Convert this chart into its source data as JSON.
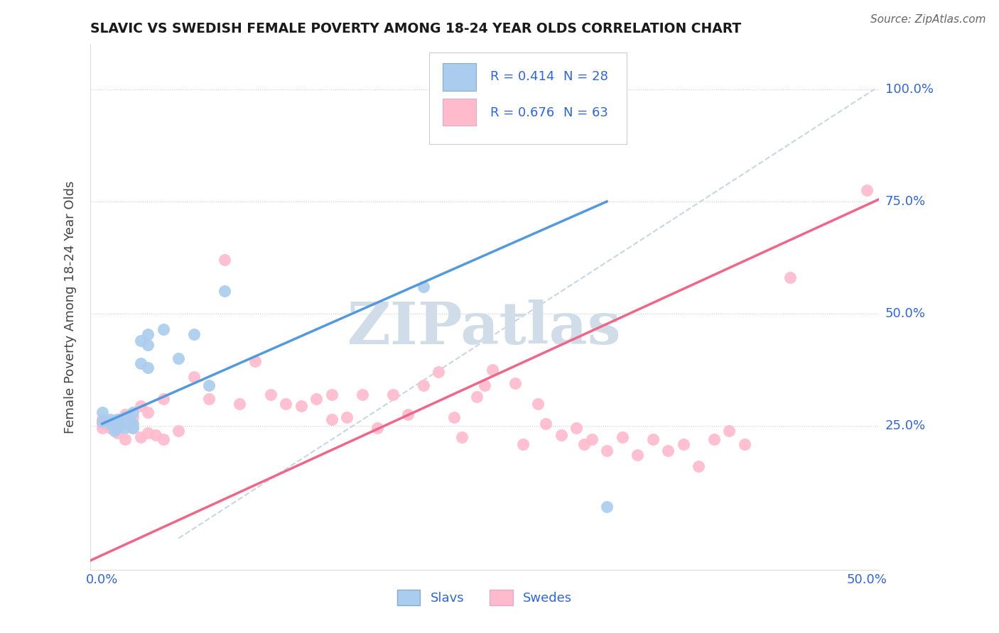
{
  "title": "SLAVIC VS SWEDISH FEMALE POVERTY AMONG 18-24 YEAR OLDS CORRELATION CHART",
  "source": "Source: ZipAtlas.com",
  "ylabel": "Female Poverty Among 18-24 Year Olds",
  "xlim": [
    -0.008,
    0.508
  ],
  "ylim": [
    -0.07,
    1.1
  ],
  "slavs_color": "#AACCEE",
  "swedes_color": "#FFBBCC",
  "slavs_line_color": "#5599DD",
  "swedes_line_color": "#EE6688",
  "diag_color": "#BBCCDD",
  "watermark": "ZIPatlas",
  "watermark_color": "#D0DDE8",
  "legend_R1": "R = 0.414",
  "legend_N1": "N = 28",
  "legend_R2": "R = 0.676",
  "legend_N2": "N = 63",
  "slavs_x": [
    0.0,
    0.0,
    0.005,
    0.005,
    0.008,
    0.01,
    0.01,
    0.01,
    0.012,
    0.015,
    0.015,
    0.015,
    0.018,
    0.02,
    0.02,
    0.02,
    0.025,
    0.025,
    0.03,
    0.03,
    0.03,
    0.04,
    0.05,
    0.06,
    0.07,
    0.08,
    0.21,
    0.33
  ],
  "slavs_y": [
    0.26,
    0.28,
    0.255,
    0.265,
    0.24,
    0.245,
    0.255,
    0.265,
    0.255,
    0.245,
    0.255,
    0.27,
    0.26,
    0.245,
    0.255,
    0.28,
    0.39,
    0.44,
    0.38,
    0.43,
    0.455,
    0.465,
    0.4,
    0.455,
    0.34,
    0.55,
    0.56,
    0.07
  ],
  "swedes_x": [
    0.0,
    0.0,
    0.0,
    0.005,
    0.005,
    0.01,
    0.01,
    0.01,
    0.015,
    0.015,
    0.02,
    0.02,
    0.025,
    0.025,
    0.03,
    0.03,
    0.035,
    0.04,
    0.04,
    0.05,
    0.06,
    0.07,
    0.08,
    0.09,
    0.1,
    0.11,
    0.12,
    0.13,
    0.14,
    0.15,
    0.15,
    0.16,
    0.17,
    0.18,
    0.19,
    0.2,
    0.21,
    0.22,
    0.23,
    0.235,
    0.245,
    0.25,
    0.255,
    0.27,
    0.275,
    0.285,
    0.29,
    0.3,
    0.31,
    0.315,
    0.32,
    0.33,
    0.34,
    0.35,
    0.36,
    0.37,
    0.38,
    0.39,
    0.4,
    0.41,
    0.42,
    0.45,
    0.5
  ],
  "swedes_y": [
    0.245,
    0.255,
    0.265,
    0.245,
    0.26,
    0.235,
    0.255,
    0.265,
    0.22,
    0.275,
    0.245,
    0.27,
    0.225,
    0.295,
    0.235,
    0.28,
    0.23,
    0.22,
    0.31,
    0.24,
    0.36,
    0.31,
    0.62,
    0.3,
    0.395,
    0.32,
    0.3,
    0.295,
    0.31,
    0.265,
    0.32,
    0.27,
    0.32,
    0.245,
    0.32,
    0.275,
    0.34,
    0.37,
    0.27,
    0.225,
    0.315,
    0.34,
    0.375,
    0.345,
    0.21,
    0.3,
    0.255,
    0.23,
    0.245,
    0.21,
    0.22,
    0.195,
    0.225,
    0.185,
    0.22,
    0.195,
    0.21,
    0.16,
    0.22,
    0.24,
    0.21,
    0.58,
    0.775
  ]
}
